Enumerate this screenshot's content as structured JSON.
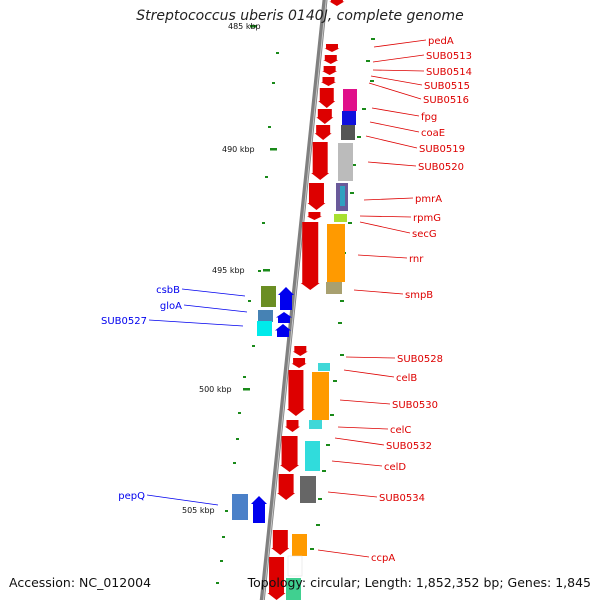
{
  "title": "Streptococcus uberis 0140J, complete genome",
  "accession": "Accession: NC_012004",
  "summary": "Topology: circular; Length: 1,852,352 bp; Genes: 1,845",
  "ruler": [
    "485 kbp",
    "490 kbp",
    "495 kbp",
    "500 kbp",
    "505 kbp"
  ],
  "colors": {
    "forward": "#0000ee",
    "reverse": "#dd0000",
    "backbone": "#808080",
    "tick": "#1a8a1a"
  },
  "genes_right": [
    "pedA",
    "SUB0513",
    "SUB0514",
    "SUB0515",
    "SUB0516",
    "fpg",
    "coaE",
    "SUB0519",
    "SUB0520",
    "pmrA",
    "rpmG",
    "secG",
    "rnr",
    "smpB",
    "SUB0528",
    "celB",
    "SUB0530",
    "celC",
    "SUB0532",
    "celD",
    "SUB0534",
    "ccpA"
  ],
  "genes_left": [
    "csbB",
    "gloA",
    "SUB0527",
    "pepQ"
  ]
}
